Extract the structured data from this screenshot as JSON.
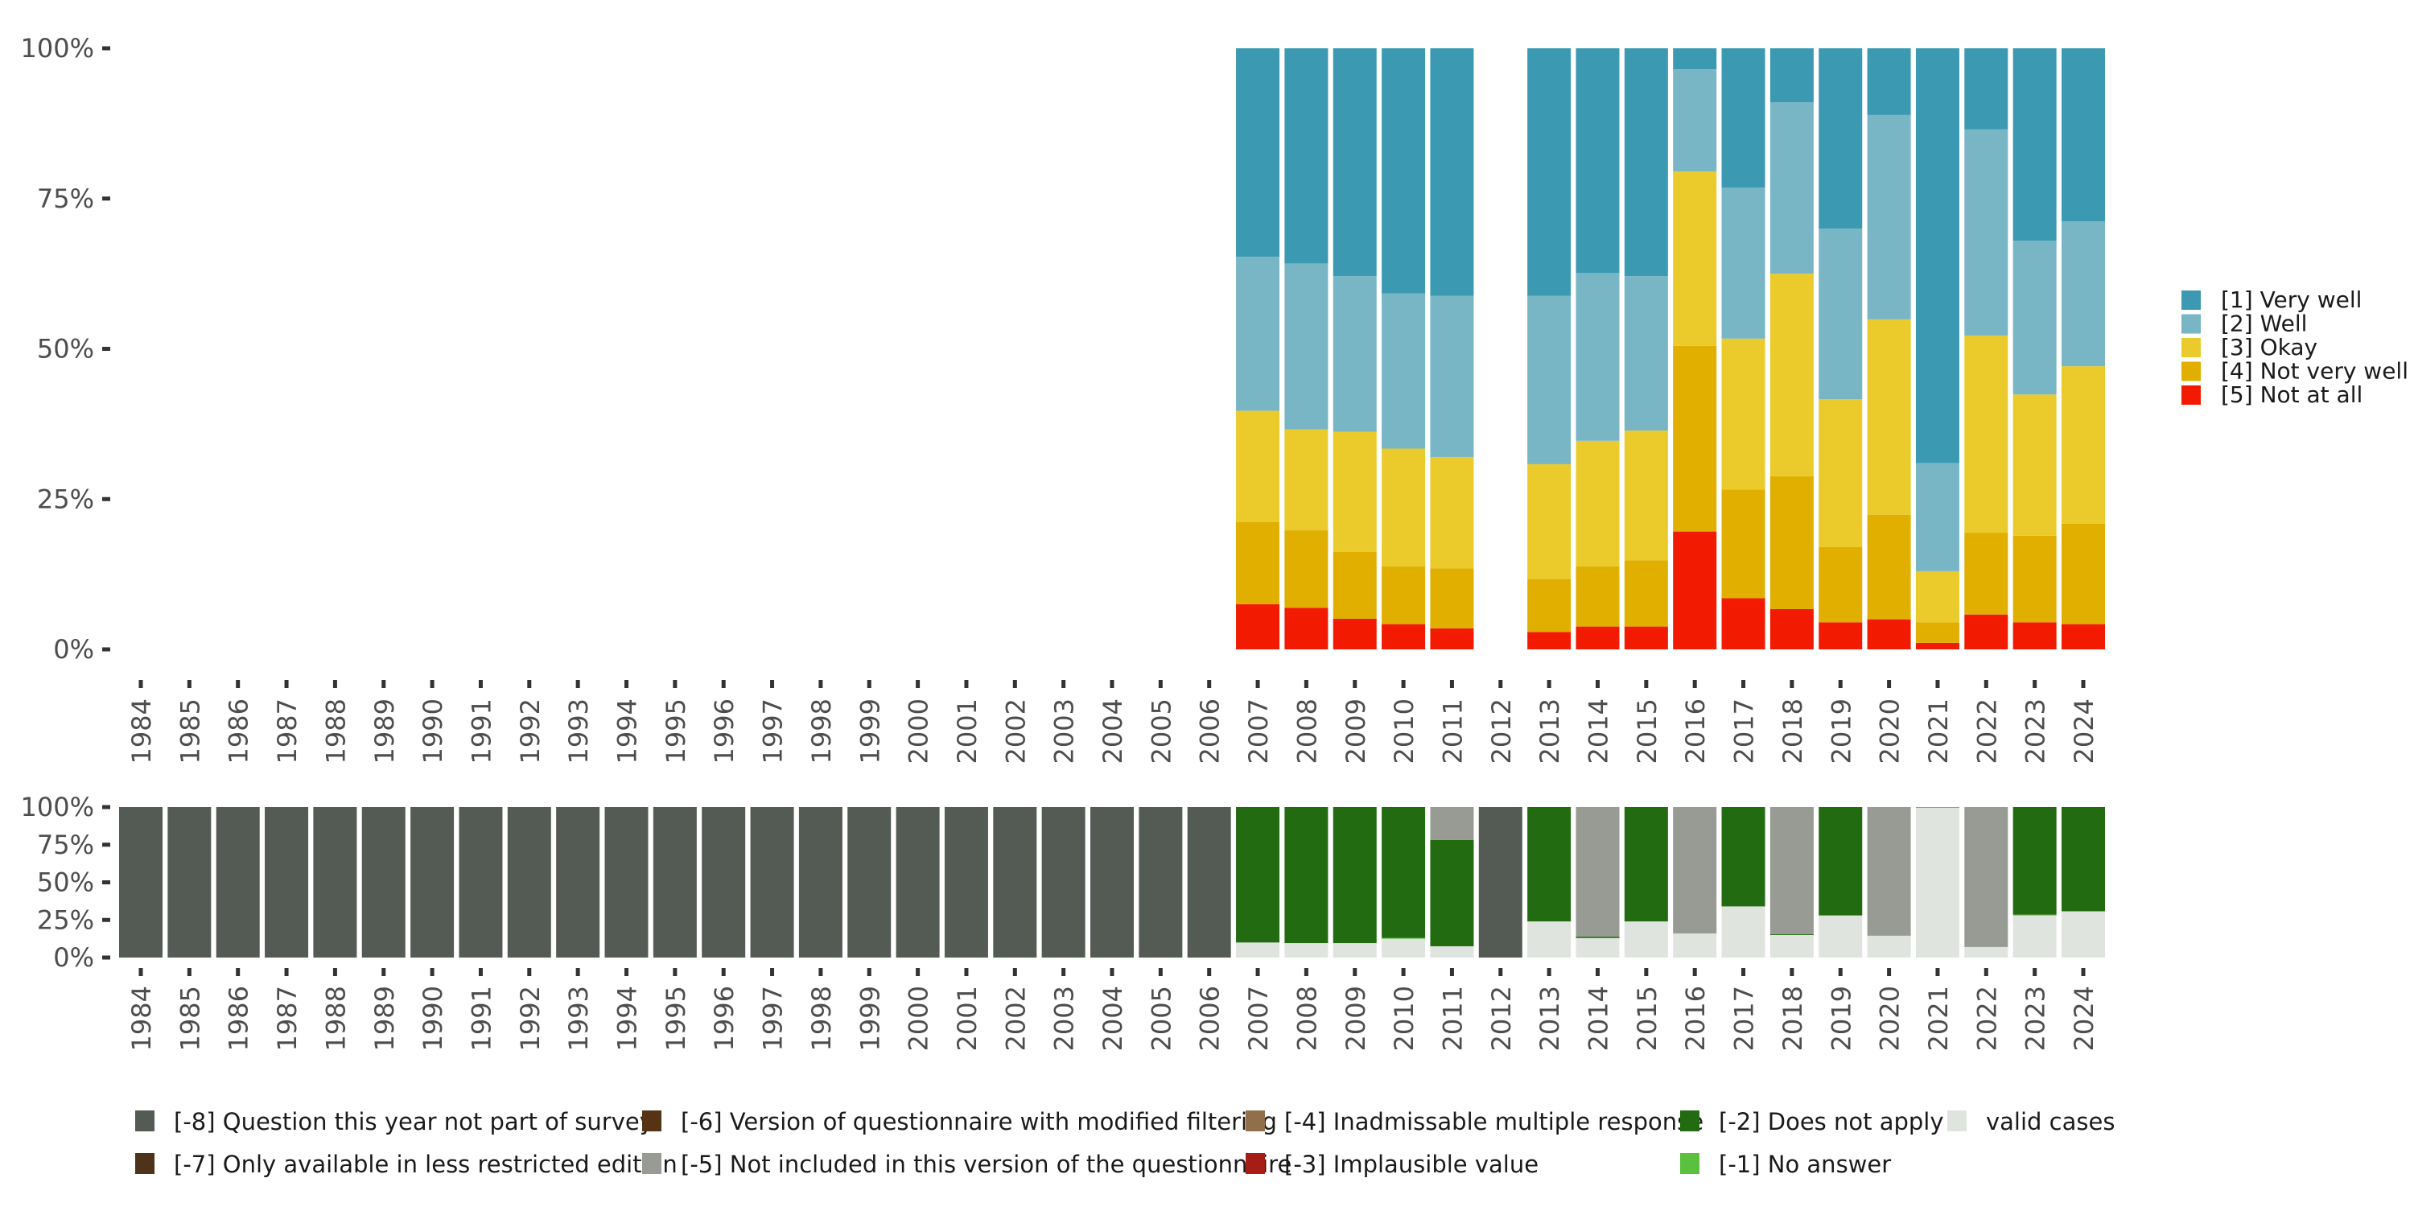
{
  "chart_data": [
    {
      "type": "bar",
      "stacked": true,
      "title": "",
      "xlabel": "",
      "ylabel": "",
      "ylim": [
        0,
        100
      ],
      "yticks": [
        "0%",
        "25%",
        "50%",
        "75%",
        "100%"
      ],
      "categories": [
        "1984",
        "1985",
        "1986",
        "1987",
        "1988",
        "1989",
        "1990",
        "1991",
        "1992",
        "1993",
        "1994",
        "1995",
        "1996",
        "1997",
        "1998",
        "1999",
        "2000",
        "2001",
        "2002",
        "2003",
        "2004",
        "2005",
        "2006",
        "2007",
        "2008",
        "2009",
        "2010",
        "2011",
        "2012",
        "2013",
        "2014",
        "2015",
        "2016",
        "2017",
        "2018",
        "2019",
        "2020",
        "2021",
        "2022",
        "2023",
        "2024"
      ],
      "legend_position": "right",
      "series": [
        {
          "name": "[1] Very well",
          "color": "#3c99b2",
          "values": [
            null,
            null,
            null,
            null,
            null,
            null,
            null,
            null,
            null,
            null,
            null,
            null,
            null,
            null,
            null,
            null,
            null,
            null,
            null,
            null,
            null,
            null,
            null,
            34.7,
            35.8,
            37.9,
            40.8,
            41.2,
            null,
            41.2,
            37.4,
            37.9,
            3.5,
            23.2,
            9.0,
            30.0,
            11.1,
            69.0,
            13.5,
            32.0,
            28.8
          ]
        },
        {
          "name": "[2] Well",
          "color": "#78b6c6",
          "values": [
            null,
            null,
            null,
            null,
            null,
            null,
            null,
            null,
            null,
            null,
            null,
            null,
            null,
            null,
            null,
            null,
            null,
            null,
            null,
            null,
            null,
            null,
            null,
            25.6,
            27.6,
            25.9,
            25.8,
            26.8,
            null,
            28.0,
            27.9,
            25.7,
            17.0,
            25.1,
            28.5,
            28.4,
            34.0,
            18.0,
            34.3,
            25.6,
            24.1
          ]
        },
        {
          "name": "[3] Okay",
          "color": "#eacb2b",
          "values": [
            null,
            null,
            null,
            null,
            null,
            null,
            null,
            null,
            null,
            null,
            null,
            null,
            null,
            null,
            null,
            null,
            null,
            null,
            null,
            null,
            null,
            null,
            null,
            18.5,
            16.8,
            20.0,
            19.6,
            18.5,
            null,
            19.1,
            20.9,
            21.6,
            29.0,
            25.1,
            33.7,
            24.6,
            32.5,
            8.5,
            32.8,
            23.5,
            26.2
          ]
        },
        {
          "name": "[4] Not very well",
          "color": "#e0af00",
          "values": [
            null,
            null,
            null,
            null,
            null,
            null,
            null,
            null,
            null,
            null,
            null,
            null,
            null,
            null,
            null,
            null,
            null,
            null,
            null,
            null,
            null,
            null,
            null,
            13.7,
            12.9,
            11.1,
            9.6,
            10.0,
            null,
            8.8,
            10.0,
            11.0,
            30.9,
            18.1,
            22.1,
            12.5,
            17.4,
            3.4,
            13.6,
            14.4,
            16.7
          ]
        },
        {
          "name": "[5] Not at all",
          "color": "#f21a00",
          "values": [
            null,
            null,
            null,
            null,
            null,
            null,
            null,
            null,
            null,
            null,
            null,
            null,
            null,
            null,
            null,
            null,
            null,
            null,
            null,
            null,
            null,
            null,
            null,
            7.5,
            6.9,
            5.1,
            4.2,
            3.5,
            null,
            2.9,
            3.8,
            3.8,
            19.6,
            8.5,
            6.7,
            4.5,
            5.0,
            1.1,
            5.8,
            4.5,
            4.2
          ]
        }
      ]
    },
    {
      "type": "bar",
      "stacked": true,
      "title": "",
      "xlabel": "",
      "ylabel": "",
      "ylim": [
        0,
        100
      ],
      "yticks": [
        "0%",
        "25%",
        "50%",
        "75%",
        "100%"
      ],
      "categories": [
        "1984",
        "1985",
        "1986",
        "1987",
        "1988",
        "1989",
        "1990",
        "1991",
        "1992",
        "1993",
        "1994",
        "1995",
        "1996",
        "1997",
        "1998",
        "1999",
        "2000",
        "2001",
        "2002",
        "2003",
        "2004",
        "2005",
        "2006",
        "2007",
        "2008",
        "2009",
        "2010",
        "2011",
        "2012",
        "2013",
        "2014",
        "2015",
        "2016",
        "2017",
        "2018",
        "2019",
        "2020",
        "2021",
        "2022",
        "2023",
        "2024"
      ],
      "legend_position": "bottom",
      "series": [
        {
          "name": "[-8] Question this year not part of survey",
          "color": "#545b55",
          "values": [
            100,
            100,
            100,
            100,
            100,
            100,
            100,
            100,
            100,
            100,
            100,
            100,
            100,
            100,
            100,
            100,
            100,
            100,
            100,
            100,
            100,
            100,
            100,
            0,
            0,
            0,
            0,
            0,
            100,
            0,
            0,
            0,
            0,
            0,
            0,
            0,
            0,
            0,
            0,
            0,
            0
          ]
        },
        {
          "name": "[-7] Only available in less restricted edition",
          "color": "#4e3219",
          "values": [
            0,
            0,
            0,
            0,
            0,
            0,
            0,
            0,
            0,
            0,
            0,
            0,
            0,
            0,
            0,
            0,
            0,
            0,
            0,
            0,
            0,
            0,
            0,
            0,
            0,
            0,
            0,
            0,
            0,
            0,
            0,
            0,
            0,
            0,
            0,
            0,
            0,
            0,
            0,
            0,
            0
          ]
        },
        {
          "name": "[-6] Version of questionnaire with modified filtering",
          "color": "#553314",
          "values": [
            0,
            0,
            0,
            0,
            0,
            0,
            0,
            0,
            0,
            0,
            0,
            0,
            0,
            0,
            0,
            0,
            0,
            0,
            0,
            0,
            0,
            0,
            0,
            0,
            0,
            0,
            0,
            0,
            0,
            0,
            0,
            0,
            0,
            0,
            0,
            0,
            0,
            0,
            0,
            0,
            0
          ]
        },
        {
          "name": "[-5] Not included in this version of the questionnaire",
          "color": "#979b94",
          "values": [
            0,
            0,
            0,
            0,
            0,
            0,
            0,
            0,
            0,
            0,
            0,
            0,
            0,
            0,
            0,
            0,
            0,
            0,
            0,
            0,
            0,
            0,
            0,
            0,
            0,
            0,
            0,
            21.8,
            0,
            0,
            86.0,
            0,
            84.0,
            0,
            84.5,
            0,
            85.5,
            0,
            93.0,
            0,
            0
          ]
        },
        {
          "name": "[-4] Inadmissable multiple response",
          "color": "#926f4b",
          "values": [
            0,
            0,
            0,
            0,
            0,
            0,
            0,
            0,
            0,
            0,
            0,
            0,
            0,
            0,
            0,
            0,
            0,
            0,
            0,
            0,
            0,
            0,
            0,
            0,
            0,
            0,
            0,
            0,
            0,
            0,
            0,
            0,
            0,
            0,
            0,
            0,
            0,
            0,
            0,
            0,
            0
          ]
        },
        {
          "name": "[-3] Implausible value",
          "color": "#a51d14",
          "values": [
            0,
            0,
            0,
            0,
            0,
            0,
            0,
            0,
            0,
            0,
            0,
            0,
            0,
            0,
            0,
            0,
            0,
            0,
            0,
            0,
            0,
            0,
            0,
            0,
            0,
            0,
            0,
            0,
            0,
            0,
            0,
            0,
            0,
            0,
            0,
            0,
            0,
            0,
            0,
            0,
            0
          ]
        },
        {
          "name": "[-2] Does not apply",
          "color": "#226b10",
          "values": [
            0,
            0,
            0,
            0,
            0,
            0,
            0,
            0,
            0,
            0,
            0,
            0,
            0,
            0,
            0,
            0,
            0,
            0,
            0,
            0,
            0,
            0,
            0,
            90.0,
            90.4,
            90.4,
            87.0,
            70.7,
            0,
            76.0,
            1.0,
            76.0,
            0,
            66.0,
            0.5,
            72.0,
            0,
            0,
            0,
            71.5,
            69.0
          ]
        },
        {
          "name": "[-1] No answer",
          "color": "#5bbf3f",
          "values": [
            0,
            0,
            0,
            0,
            0,
            0,
            0,
            0,
            0,
            0,
            0,
            0,
            0,
            0,
            0,
            0,
            0,
            0,
            0,
            0,
            0,
            0,
            0,
            0,
            0,
            0,
            0.5,
            0,
            0,
            0,
            0,
            0,
            0,
            0,
            0,
            0,
            0,
            0.5,
            0,
            0.5,
            0.5
          ]
        },
        {
          "name": "valid cases",
          "color": "#e0e4df",
          "values": [
            0,
            0,
            0,
            0,
            0,
            0,
            0,
            0,
            0,
            0,
            0,
            0,
            0,
            0,
            0,
            0,
            0,
            0,
            0,
            0,
            0,
            0,
            0,
            10.0,
            9.6,
            9.6,
            12.5,
            7.5,
            0,
            24.0,
            13.0,
            24.0,
            16.0,
            34.0,
            15.0,
            28.0,
            14.5,
            99.5,
            7.0,
            28.0,
            30.5
          ]
        }
      ]
    }
  ],
  "top_legend": [
    {
      "label": "[1] Very well",
      "color": "#3c99b2"
    },
    {
      "label": "[2] Well",
      "color": "#78b6c6"
    },
    {
      "label": "[3] Okay",
      "color": "#eacb2b"
    },
    {
      "label": "[4] Not very well",
      "color": "#e0af00"
    },
    {
      "label": "[5] Not at all",
      "color": "#f21a00"
    }
  ],
  "bottom_legend": [
    {
      "label": "[-8] Question this year not part of survey",
      "color": "#545b55"
    },
    {
      "label": "[-7] Only available in less restricted edition",
      "color": "#4e3219"
    },
    {
      "label": "[-6] Version of questionnaire with modified filtering",
      "color": "#553314"
    },
    {
      "label": "[-5] Not included in this version of the questionnaire",
      "color": "#979b94"
    },
    {
      "label": "[-4] Inadmissable multiple response",
      "color": "#926f4b"
    },
    {
      "label": "[-3] Implausible value",
      "color": "#a51d14"
    },
    {
      "label": "[-2] Does not apply",
      "color": "#226b10"
    },
    {
      "label": "[-1] No answer",
      "color": "#5bbf3f"
    },
    {
      "label": "valid cases",
      "color": "#e0e4df"
    }
  ]
}
